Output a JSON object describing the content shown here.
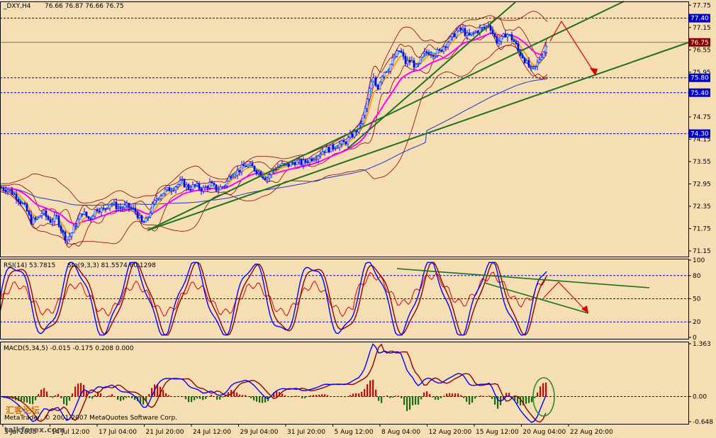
{
  "header": {
    "symbol": "_DXY,H4",
    "ohlc": "76.66 76.87 76.66 76.75",
    "rsi_label": "RSI(14) 53.7815",
    "stoch_label": "Sto(9,3,3) 81.5574 60.1298",
    "macd_label": "MACD(5,34,5) -0.015 -0.175 0.208 0.000"
  },
  "footer": {
    "watermark": "MetaTrader, © 2001-2007 MetaQuotes Software Corp.",
    "site": "talkforex.com",
    "logo": "汇客论坛"
  },
  "colors": {
    "background": "#f5deb3",
    "grid": "#c8a46a",
    "candle": "#0000ff",
    "ma_fast": "#00c0ff",
    "ma_mid": "#ff9900",
    "ma_slow": "#ff00ff",
    "ma_long": "#2233cc",
    "bands": "#8b0000",
    "trend": "#207020",
    "arrow": "#dd0000",
    "level": "#0000cc"
  },
  "chart_data": [
    {
      "type": "candlestick",
      "name": "price",
      "ylim": [
        71.0,
        77.85
      ],
      "y_ticks": [
        77.75,
        77.15,
        76.55,
        75.95,
        75.35,
        74.75,
        74.15,
        73.55,
        72.95,
        72.35,
        71.75,
        71.15
      ],
      "level_tags": [
        77.4,
        75.8,
        75.4,
        74.3
      ],
      "current_price": "76.75",
      "x_labels": [
        "3 Jul 2008",
        "14 Jul 12:00",
        "17 Jul 04:00",
        "21 Jul 20:00",
        "24 Jul 12:00",
        "29 Jul 04:00",
        "31 Jul 20:00",
        "5 Aug 12:00",
        "8 Aug 04:00",
        "12 Aug 20:00",
        "15 Aug 12:00",
        "20 Aug 04:00",
        "22 Aug 20:00"
      ],
      "close_path": [
        [
          0,
          72.85
        ],
        [
          12,
          72.8
        ],
        [
          24,
          72.6
        ],
        [
          36,
          72.3
        ],
        [
          44,
          71.95
        ],
        [
          52,
          72.0
        ],
        [
          60,
          72.2
        ],
        [
          70,
          71.95
        ],
        [
          80,
          72.05
        ],
        [
          88,
          71.65
        ],
        [
          94,
          71.45
        ],
        [
          100,
          71.6
        ],
        [
          108,
          71.9
        ],
        [
          116,
          72.2
        ],
        [
          126,
          72.0
        ],
        [
          136,
          72.3
        ],
        [
          146,
          72.25
        ],
        [
          156,
          72.45
        ],
        [
          168,
          72.3
        ],
        [
          180,
          72.35
        ],
        [
          192,
          72.2
        ],
        [
          200,
          71.9
        ],
        [
          206,
          71.95
        ],
        [
          214,
          72.3
        ],
        [
          222,
          72.6
        ],
        [
          232,
          72.75
        ],
        [
          244,
          72.85
        ],
        [
          256,
          73.0
        ],
        [
          266,
          72.85
        ],
        [
          276,
          72.9
        ],
        [
          286,
          72.8
        ],
        [
          296,
          72.95
        ],
        [
          306,
          72.8
        ],
        [
          316,
          72.9
        ],
        [
          326,
          73.2
        ],
        [
          336,
          73.3
        ],
        [
          346,
          73.45
        ],
        [
          356,
          73.4
        ],
        [
          366,
          73.25
        ],
        [
          376,
          73.1
        ],
        [
          386,
          73.35
        ],
        [
          396,
          73.45
        ],
        [
          406,
          73.45
        ],
        [
          416,
          73.55
        ],
        [
          426,
          73.5
        ],
        [
          436,
          73.6
        ],
        [
          446,
          73.7
        ],
        [
          456,
          73.85
        ],
        [
          466,
          73.9
        ],
        [
          476,
          74.0
        ],
        [
          486,
          74.05
        ],
        [
          496,
          74.25
        ],
        [
          506,
          74.45
        ],
        [
          514,
          74.85
        ],
        [
          520,
          75.4
        ],
        [
          526,
          75.8
        ],
        [
          532,
          75.5
        ],
        [
          540,
          75.95
        ],
        [
          548,
          76.05
        ],
        [
          556,
          76.35
        ],
        [
          564,
          76.55
        ],
        [
          572,
          76.2
        ],
        [
          580,
          76.25
        ],
        [
          588,
          76.05
        ],
        [
          596,
          76.4
        ],
        [
          604,
          76.5
        ],
        [
          612,
          76.45
        ],
        [
          620,
          76.5
        ],
        [
          628,
          76.7
        ],
        [
          636,
          76.85
        ],
        [
          644,
          77.05
        ],
        [
          652,
          77.1
        ],
        [
          660,
          76.9
        ],
        [
          668,
          77.0
        ],
        [
          676,
          77.1
        ],
        [
          684,
          77.15
        ],
        [
          690,
          77.25
        ],
        [
          696,
          76.95
        ],
        [
          702,
          76.75
        ],
        [
          708,
          76.85
        ],
        [
          714,
          77.0
        ],
        [
          720,
          76.9
        ],
        [
          726,
          76.75
        ],
        [
          732,
          76.5
        ],
        [
          738,
          76.35
        ],
        [
          744,
          76.15
        ],
        [
          750,
          76.0
        ],
        [
          756,
          76.1
        ],
        [
          762,
          76.35
        ],
        [
          768,
          76.55
        ],
        [
          772,
          76.75
        ]
      ]
    },
    {
      "type": "line",
      "name": "RSI(14) / Sto(9,3,3)",
      "ylim": [
        0,
        100
      ],
      "y_ticks": [
        100,
        80,
        50,
        20,
        0
      ],
      "levels": [
        80,
        50,
        20
      ]
    },
    {
      "type": "bar",
      "name": "MACD(5,34,5)",
      "ylim": [
        -0.648,
        1.363
      ],
      "y_ticks": [
        "1.363",
        "0.00",
        "-0.648"
      ]
    }
  ]
}
